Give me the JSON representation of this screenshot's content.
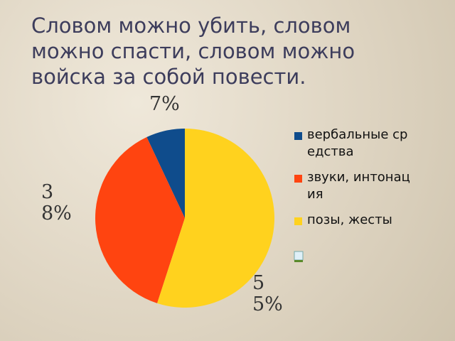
{
  "chart_data": {
    "type": "pie",
    "title": "Словом можно убить, словом можно спасти, словом можно войска за собой повести.",
    "categories": [
      "вербальные средства",
      "звуки, интонация",
      "позы, жесты"
    ],
    "values": [
      7,
      38,
      55
    ],
    "value_labels": [
      "7%",
      "38%",
      "55%"
    ],
    "colors": [
      "#0f4c8c",
      "#ff4410",
      "#ffd21e"
    ]
  }
}
